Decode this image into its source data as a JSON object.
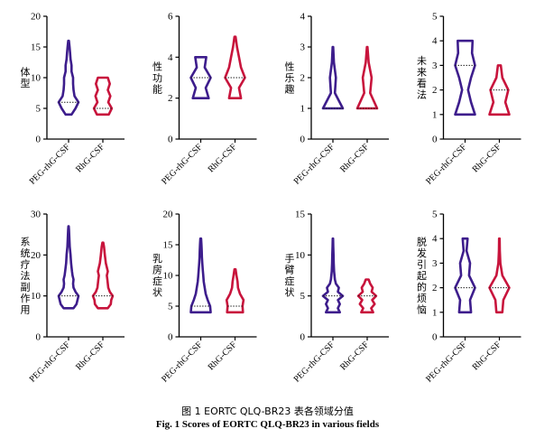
{
  "caption_zh": "图 1 EORTC QLQ-BR23 表各领域分值",
  "caption_en": "Fig. 1 Scores of EORTC QLQ-BR23 in various fields",
  "colors": {
    "peg": "#3d1d8c",
    "rhg": "#c8143c",
    "median": "#222222",
    "axis": "#000000"
  },
  "chart_data": [
    {
      "type": "violin",
      "ylabel": "体型",
      "yticks": [
        0,
        5,
        10,
        15,
        20
      ],
      "ylim": [
        0,
        20
      ],
      "categories": [
        "PEG-rhG-CSF",
        "RhG-CSF"
      ],
      "series": [
        {
          "name": "PEG-rhG-CSF",
          "min": 4,
          "max": 16,
          "median": 6,
          "profile": [
            [
              4,
              0.3
            ],
            [
              5,
              0.7
            ],
            [
              6,
              1.0
            ],
            [
              7,
              0.6
            ],
            [
              8,
              0.5
            ],
            [
              9,
              0.45
            ],
            [
              10,
              0.45
            ],
            [
              11,
              0.3
            ],
            [
              12,
              0.3
            ],
            [
              13,
              0.2
            ],
            [
              14,
              0.15
            ],
            [
              15,
              0.1
            ],
            [
              16,
              0.04
            ]
          ]
        },
        {
          "name": "RhG-CSF",
          "min": 4,
          "max": 10,
          "median": 5,
          "profile": [
            [
              4,
              0.6
            ],
            [
              5,
              0.9
            ],
            [
              6,
              0.55
            ],
            [
              7,
              0.75
            ],
            [
              8,
              0.5
            ],
            [
              9,
              0.7
            ],
            [
              10,
              0.5
            ]
          ]
        }
      ]
    },
    {
      "type": "violin",
      "ylabel": "性功能",
      "yticks": [
        0,
        2,
        4,
        6
      ],
      "ylim": [
        0,
        6
      ],
      "categories": [
        "PEG-rhG-CSF",
        "RhG-CSF"
      ],
      "series": [
        {
          "name": "PEG-rhG-CSF",
          "min": 2,
          "max": 4,
          "median": 3,
          "profile": [
            [
              2,
              0.8
            ],
            [
              2.5,
              0.5
            ],
            [
              3,
              1.0
            ],
            [
              3.5,
              0.4
            ],
            [
              4,
              0.55
            ]
          ]
        },
        {
          "name": "RhG-CSF",
          "min": 2,
          "max": 5,
          "median": 3,
          "profile": [
            [
              2,
              0.6
            ],
            [
              2.5,
              0.4
            ],
            [
              3,
              1.0
            ],
            [
              3.5,
              0.6
            ],
            [
              4,
              0.4
            ],
            [
              4.5,
              0.2
            ],
            [
              5,
              0.05
            ]
          ]
        }
      ]
    },
    {
      "type": "violin",
      "ylabel": "性乐趣",
      "yticks": [
        0,
        1,
        2,
        3,
        4
      ],
      "ylim": [
        0,
        4
      ],
      "categories": [
        "PEG-rhG-CSF",
        "RhG-CSF"
      ],
      "series": [
        {
          "name": "PEG-rhG-CSF",
          "min": 1,
          "max": 3,
          "median": 1,
          "profile": [
            [
              1,
              1.0
            ],
            [
              1.5,
              0.2
            ],
            [
              2,
              0.3
            ],
            [
              2.5,
              0.1
            ],
            [
              3,
              0.03
            ]
          ]
        },
        {
          "name": "RhG-CSF",
          "min": 1,
          "max": 3,
          "median": 1,
          "profile": [
            [
              1,
              1.0
            ],
            [
              1.5,
              0.3
            ],
            [
              2,
              0.45
            ],
            [
              2.5,
              0.15
            ],
            [
              3,
              0.03
            ]
          ]
        }
      ]
    },
    {
      "type": "violin",
      "ylabel": "未来看法",
      "yticks": [
        0,
        1,
        2,
        3,
        4,
        5
      ],
      "ylim": [
        0,
        5
      ],
      "categories": [
        "PEG-rhG-CSF",
        "RhG-CSF"
      ],
      "series": [
        {
          "name": "PEG-rhG-CSF",
          "min": 1,
          "max": 4,
          "median": 3,
          "profile": [
            [
              1,
              1.0
            ],
            [
              1.5,
              0.6
            ],
            [
              2,
              0.3
            ],
            [
              2.5,
              0.6
            ],
            [
              3,
              1.0
            ],
            [
              3.5,
              0.7
            ],
            [
              4,
              0.75
            ]
          ]
        },
        {
          "name": "RhG-CSF",
          "min": 1,
          "max": 3,
          "median": 2,
          "profile": [
            [
              1,
              1.0
            ],
            [
              1.5,
              0.6
            ],
            [
              2,
              0.9
            ],
            [
              2.5,
              0.3
            ],
            [
              3,
              0.15
            ]
          ]
        }
      ]
    },
    {
      "type": "violin",
      "ylabel": "系统疗法副作用",
      "yticks": [
        0,
        10,
        20,
        30
      ],
      "ylim": [
        0,
        30
      ],
      "categories": [
        "PEG-rhG-CSF",
        "RhG-CSF"
      ],
      "series": [
        {
          "name": "PEG-rhG-CSF",
          "min": 7,
          "max": 27,
          "median": 10,
          "profile": [
            [
              7,
              0.5
            ],
            [
              8,
              0.8
            ],
            [
              9,
              0.9
            ],
            [
              10,
              1.0
            ],
            [
              11,
              0.7
            ],
            [
              12,
              0.5
            ],
            [
              13,
              0.45
            ],
            [
              14,
              0.5
            ],
            [
              15,
              0.4
            ],
            [
              16,
              0.35
            ],
            [
              18,
              0.25
            ],
            [
              20,
              0.2
            ],
            [
              22,
              0.12
            ],
            [
              24,
              0.08
            ],
            [
              26,
              0.05
            ],
            [
              27,
              0.02
            ]
          ]
        },
        {
          "name": "RhG-CSF",
          "min": 7,
          "max": 23,
          "median": 10,
          "profile": [
            [
              7,
              0.5
            ],
            [
              8,
              0.8
            ],
            [
              9,
              0.85
            ],
            [
              10,
              1.0
            ],
            [
              11,
              0.7
            ],
            [
              12,
              0.55
            ],
            [
              13,
              0.5
            ],
            [
              14,
              0.45
            ],
            [
              15,
              0.4
            ],
            [
              16,
              0.5
            ],
            [
              17,
              0.4
            ],
            [
              18,
              0.3
            ],
            [
              20,
              0.2
            ],
            [
              22,
              0.12
            ],
            [
              23,
              0.05
            ]
          ]
        }
      ]
    },
    {
      "type": "violin",
      "ylabel": "乳房症状",
      "yticks": [
        0,
        5,
        10,
        15,
        20
      ],
      "ylim": [
        0,
        20
      ],
      "categories": [
        "PEG-rhG-CSF",
        "RhG-CSF"
      ],
      "series": [
        {
          "name": "PEG-rhG-CSF",
          "min": 4,
          "max": 16,
          "median": 5,
          "profile": [
            [
              4,
              1.0
            ],
            [
              5,
              0.95
            ],
            [
              6,
              0.7
            ],
            [
              7,
              0.5
            ],
            [
              8,
              0.4
            ],
            [
              9,
              0.3
            ],
            [
              10,
              0.25
            ],
            [
              11,
              0.2
            ],
            [
              12,
              0.15
            ],
            [
              13,
              0.12
            ],
            [
              14,
              0.1
            ],
            [
              15,
              0.07
            ],
            [
              16,
              0.04
            ]
          ]
        },
        {
          "name": "RhG-CSF",
          "min": 4,
          "max": 11,
          "median": 5,
          "profile": [
            [
              4,
              0.8
            ],
            [
              5,
              0.75
            ],
            [
              6,
              0.85
            ],
            [
              7,
              0.5
            ],
            [
              8,
              0.3
            ],
            [
              9,
              0.25
            ],
            [
              10,
              0.15
            ],
            [
              11,
              0.05
            ]
          ]
        }
      ]
    },
    {
      "type": "violin",
      "ylabel": "手臂症状",
      "yticks": [
        0,
        5,
        10,
        15
      ],
      "ylim": [
        0,
        15
      ],
      "categories": [
        "PEG-rhG-CSF",
        "RhG-CSF"
      ],
      "series": [
        {
          "name": "PEG-rhG-CSF",
          "min": 3,
          "max": 12,
          "median": 5,
          "profile": [
            [
              3,
              0.7
            ],
            [
              3.5,
              0.5
            ],
            [
              4,
              0.7
            ],
            [
              4.5,
              0.5
            ],
            [
              5,
              1.0
            ],
            [
              5.5,
              0.5
            ],
            [
              6,
              0.6
            ],
            [
              6.5,
              0.3
            ],
            [
              7,
              0.2
            ],
            [
              8,
              0.12
            ],
            [
              9,
              0.08
            ],
            [
              10,
              0.06
            ],
            [
              11,
              0.04
            ],
            [
              12,
              0.02
            ]
          ]
        },
        {
          "name": "RhG-CSF",
          "min": 3,
          "max": 7,
          "median": 5,
          "profile": [
            [
              3,
              0.6
            ],
            [
              3.5,
              0.4
            ],
            [
              4,
              0.75
            ],
            [
              4.5,
              0.5
            ],
            [
              5,
              0.9
            ],
            [
              5.5,
              0.45
            ],
            [
              6,
              0.55
            ],
            [
              6.5,
              0.3
            ],
            [
              7,
              0.15
            ]
          ]
        }
      ]
    },
    {
      "type": "violin",
      "ylabel": "脱发引起的烦恼",
      "yticks": [
        0,
        1,
        2,
        3,
        4,
        5
      ],
      "ylim": [
        0,
        5
      ],
      "categories": [
        "PEG-rhG-CSF",
        "RhG-CSF"
      ],
      "series": [
        {
          "name": "PEG-rhG-CSF",
          "min": 1,
          "max": 4,
          "median": 2,
          "profile": [
            [
              1,
              0.6
            ],
            [
              1.5,
              0.5
            ],
            [
              2,
              1.0
            ],
            [
              2.5,
              0.4
            ],
            [
              3,
              0.5
            ],
            [
              3.5,
              0.15
            ],
            [
              4,
              0.25
            ]
          ]
        },
        {
          "name": "RhG-CSF",
          "min": 1,
          "max": 4,
          "median": 2,
          "profile": [
            [
              1,
              0.3
            ],
            [
              1.5,
              0.4
            ],
            [
              2,
              1.0
            ],
            [
              2.5,
              0.3
            ],
            [
              3,
              0.1
            ],
            [
              3.5,
              0.05
            ],
            [
              4,
              0.03
            ]
          ]
        }
      ]
    }
  ]
}
